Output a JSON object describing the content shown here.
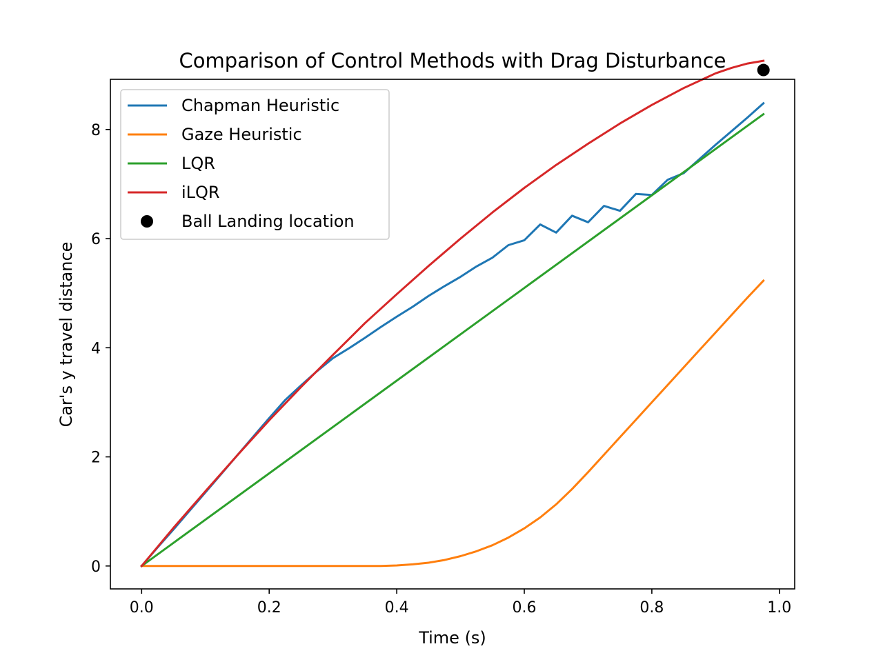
{
  "chart_data": {
    "type": "line",
    "title": "Comparison of Control Methods with Drag Disturbance",
    "xlabel": "Time (s)",
    "ylabel": "Car's y travel distance",
    "xlim": [
      -0.049,
      1.024
    ],
    "ylim": [
      -0.42,
      8.92
    ],
    "xticks": [
      {
        "value": 0.0,
        "label": "0.0"
      },
      {
        "value": 0.2,
        "label": "0.2"
      },
      {
        "value": 0.4,
        "label": "0.4"
      },
      {
        "value": 0.6,
        "label": "0.6"
      },
      {
        "value": 0.8,
        "label": "0.8"
      },
      {
        "value": 1.0,
        "label": "1.0"
      }
    ],
    "yticks": [
      {
        "value": 0,
        "label": "0"
      },
      {
        "value": 2,
        "label": "2"
      },
      {
        "value": 4,
        "label": "4"
      },
      {
        "value": 6,
        "label": "6"
      },
      {
        "value": 8,
        "label": "8"
      }
    ],
    "grid": false,
    "legend_position": "top-left",
    "series": [
      {
        "name": "Chapman Heuristic",
        "color": "#1f77b4",
        "x": [
          0,
          0.025,
          0.05,
          0.075,
          0.1,
          0.125,
          0.15,
          0.175,
          0.2,
          0.225,
          0.25,
          0.275,
          0.3,
          0.325,
          0.35,
          0.375,
          0.4,
          0.425,
          0.45,
          0.475,
          0.5,
          0.525,
          0.55,
          0.575,
          0.6,
          0.625,
          0.65,
          0.675,
          0.7,
          0.725,
          0.75,
          0.775,
          0.8,
          0.825,
          0.85,
          0.875,
          0.9,
          0.925,
          0.95,
          0.975
        ],
        "y": [
          0,
          0.34,
          0.67,
          1.01,
          1.35,
          1.69,
          2.03,
          2.37,
          2.71,
          3.04,
          3.31,
          3.57,
          3.81,
          3.99,
          4.18,
          4.38,
          4.57,
          4.75,
          4.95,
          5.13,
          5.3,
          5.49,
          5.65,
          5.88,
          5.97,
          6.26,
          6.11,
          6.42,
          6.3,
          6.6,
          6.51,
          6.82,
          6.8,
          7.08,
          7.2,
          7.46,
          7.72,
          7.97,
          8.22,
          8.48
        ]
      },
      {
        "name": "Gaze Heuristic",
        "color": "#ff7f0e",
        "x": [
          0,
          0.05,
          0.1,
          0.15,
          0.2,
          0.25,
          0.3,
          0.35,
          0.375,
          0.4,
          0.425,
          0.45,
          0.475,
          0.5,
          0.525,
          0.55,
          0.575,
          0.6,
          0.625,
          0.65,
          0.675,
          0.7,
          0.725,
          0.75,
          0.775,
          0.8,
          0.825,
          0.85,
          0.875,
          0.9,
          0.925,
          0.95,
          0.975
        ],
        "y": [
          0,
          0,
          0,
          0,
          0,
          0,
          0,
          0,
          0,
          0.01,
          0.03,
          0.06,
          0.11,
          0.18,
          0.27,
          0.38,
          0.52,
          0.69,
          0.89,
          1.13,
          1.41,
          1.72,
          2.04,
          2.36,
          2.68,
          3.0,
          3.32,
          3.64,
          3.96,
          4.28,
          4.6,
          4.92,
          5.23
        ]
      },
      {
        "name": "LQR",
        "color": "#2ca02c",
        "x": [
          0,
          0.975
        ],
        "y": [
          0,
          8.28
        ]
      },
      {
        "name": "iLQR",
        "color": "#d62728",
        "x": [
          0,
          0.05,
          0.1,
          0.15,
          0.2,
          0.25,
          0.3,
          0.35,
          0.4,
          0.45,
          0.5,
          0.55,
          0.6,
          0.65,
          0.7,
          0.75,
          0.8,
          0.85,
          0.9,
          0.925,
          0.95,
          0.975
        ],
        "y": [
          0,
          0.7,
          1.37,
          2.03,
          2.67,
          3.28,
          3.87,
          4.45,
          4.98,
          5.5,
          6.0,
          6.48,
          6.93,
          7.35,
          7.74,
          8.11,
          8.45,
          8.76,
          9.03,
          9.13,
          9.21,
          9.26
        ]
      }
    ],
    "points": [
      {
        "name": "Ball Landing location",
        "color": "#000000",
        "x": 0.975,
        "y": 9.09
      }
    ]
  }
}
